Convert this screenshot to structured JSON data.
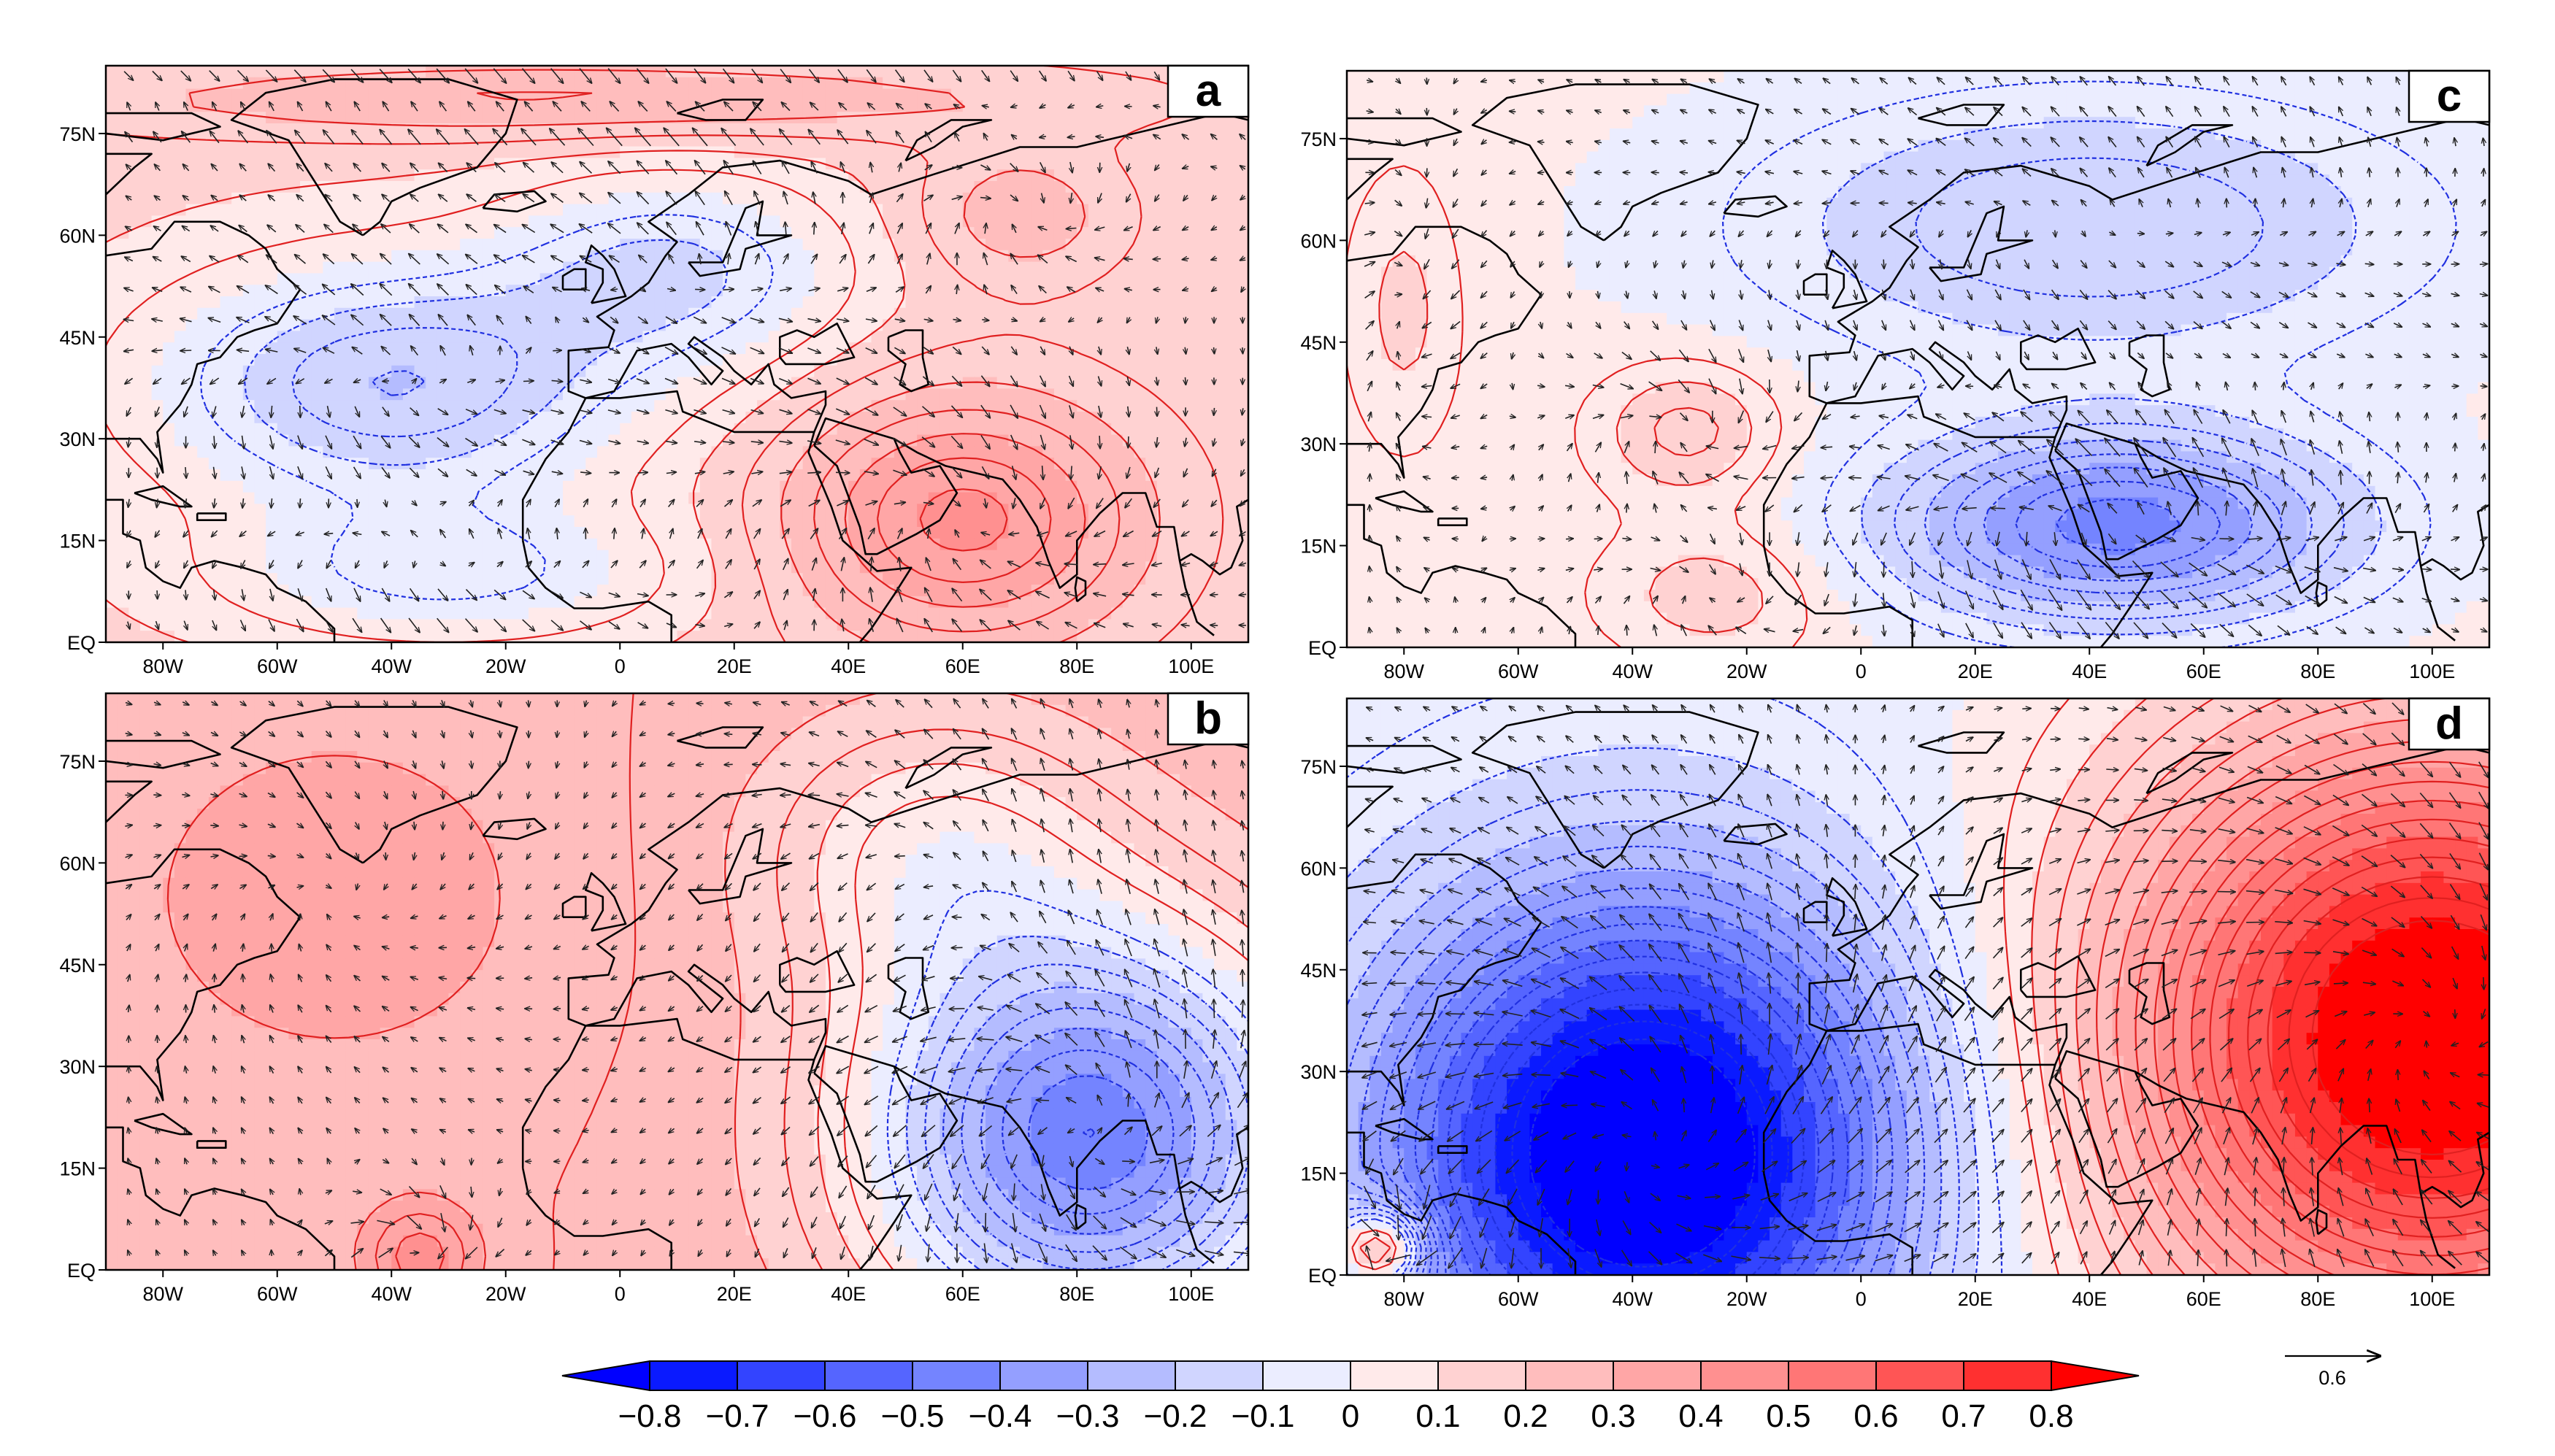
{
  "panels": [
    {
      "letter": "a",
      "pattern": "a"
    },
    {
      "letter": "b",
      "pattern": "b"
    },
    {
      "letter": "c",
      "pattern": "c"
    },
    {
      "letter": "d",
      "pattern": "d"
    }
  ],
  "axes": {
    "x_ticks": [
      "80W",
      "60W",
      "40W",
      "20W",
      "0",
      "20E",
      "40E",
      "60E",
      "80E",
      "100E"
    ],
    "y_ticks": [
      "75N",
      "60N",
      "45N",
      "30N",
      "15N",
      "EQ"
    ],
    "lon_range": [
      -90,
      110
    ],
    "lat_range": [
      0,
      85
    ]
  },
  "colorbar": {
    "labels": [
      "−0.8",
      "−0.7",
      "−0.6",
      "−0.5",
      "−0.4",
      "−0.3",
      "−0.2",
      "−0.1",
      "0",
      "0.1",
      "0.2",
      "0.3",
      "0.4",
      "0.5",
      "0.6",
      "0.7",
      "0.8"
    ],
    "colors": [
      "#0a1aff",
      "#3344ff",
      "#5565ff",
      "#7484ff",
      "#949fff",
      "#b4bcff",
      "#d0d5ff",
      "#ebedff",
      "#ffeaea",
      "#ffd2d2",
      "#ffbdbd",
      "#ffa6a6",
      "#ff9090",
      "#ff7676",
      "#ff5555",
      "#ff3030"
    ],
    "end_low": "#0000ff",
    "end_high": "#ff0000"
  },
  "reference_vector": {
    "label": "0.6"
  },
  "colors": {
    "positive_contour": "#e02020",
    "negative_contour": "#2030e0",
    "coast": "#000000",
    "arrow": "#222222"
  }
}
